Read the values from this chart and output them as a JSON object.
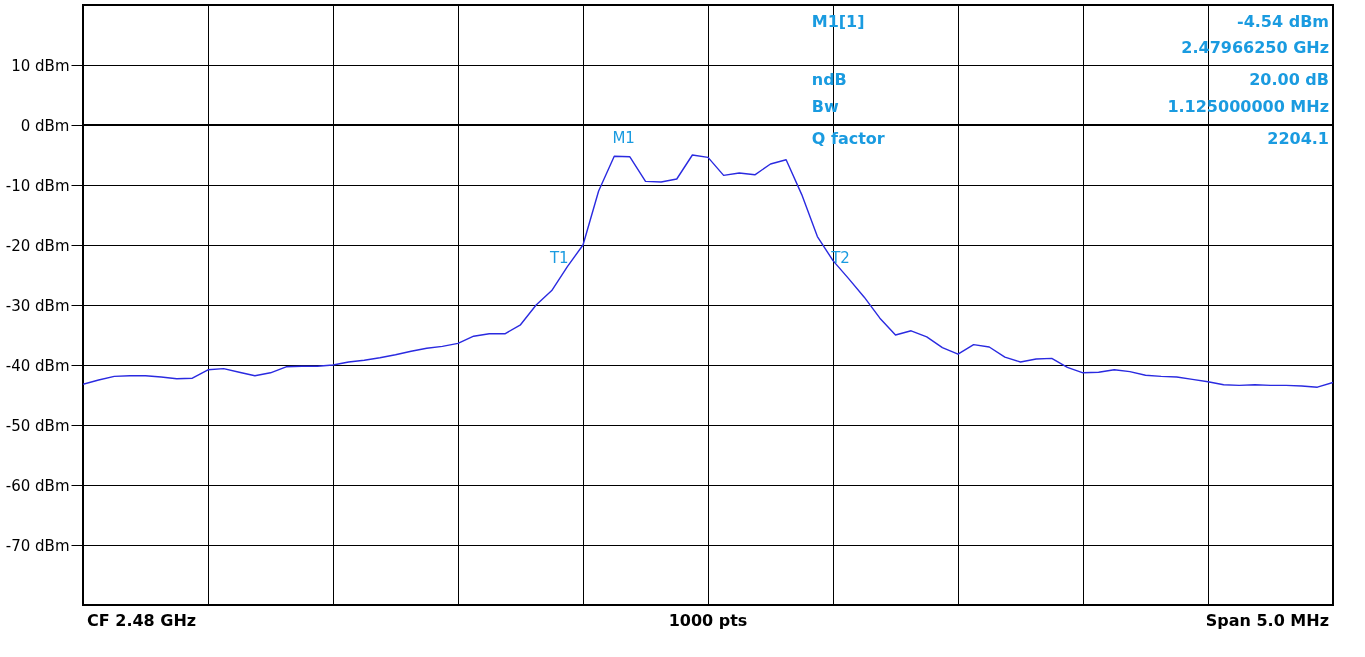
{
  "chart_data": {
    "type": "line",
    "categories": [
      null,
      null,
      null,
      null,
      null,
      null,
      null,
      null,
      null,
      null,
      null,
      null,
      null,
      null,
      null,
      null,
      null,
      null,
      null,
      null,
      null,
      null,
      null,
      null,
      null,
      null,
      null,
      null,
      null,
      null,
      null,
      null,
      null,
      null,
      null,
      null,
      null,
      null,
      null,
      null,
      null,
      null,
      null,
      null,
      null,
      null,
      null,
      null,
      null,
      null,
      null,
      null,
      null,
      null,
      null,
      null,
      null,
      null,
      null,
      null,
      null,
      null,
      null,
      null,
      null,
      null,
      null,
      null,
      null,
      null,
      null,
      null,
      null,
      null,
      null,
      null,
      null,
      null,
      null,
      null,
      null
    ],
    "series": [
      {
        "color": "#2a2ae0",
        "values": [
          -43.2,
          -42.5,
          -41.9,
          -41.8,
          -41.8,
          -42.0,
          -42.3,
          -42.2,
          -40.8,
          -40.6,
          -41.2,
          -41.8,
          -41.3,
          -40.3,
          -40.2,
          -40.2,
          -40.0,
          -39.5,
          -39.2,
          -38.8,
          -38.3,
          -37.7,
          -37.2,
          -36.9,
          -36.4,
          -35.2,
          -34.8,
          -34.8,
          -33.3,
          -30.0,
          -27.6,
          -23.6,
          -20.0,
          -11.0,
          -5.2,
          -5.3,
          -9.4,
          -9.5,
          -9.0,
          -5.0,
          -5.4,
          -8.4,
          -8.0,
          -8.3,
          -6.5,
          -5.8,
          -11.6,
          -18.6,
          -22.6,
          -25.6,
          -28.7,
          -32.2,
          -35.0,
          -34.3,
          -35.3,
          -37.1,
          -38.2,
          -36.6,
          -37.0,
          -38.7,
          -39.5,
          -39.0,
          -38.9,
          -40.4,
          -41.3,
          -41.2,
          -40.8,
          -41.1,
          -41.7,
          -41.9,
          -42.0,
          -42.4,
          -42.8,
          -43.3,
          -43.4,
          -43.3,
          -43.4,
          -43.4,
          -43.5,
          -43.7,
          -42.9
        ]
      }
    ],
    "ylim": [
      -80,
      20
    ],
    "yticks": [
      {
        "value": 10,
        "label": "10 dBm"
      },
      {
        "value": 0,
        "label": "0 dBm"
      },
      {
        "value": -10,
        "label": "-10 dBm"
      },
      {
        "value": -20,
        "label": "-20 dBm"
      },
      {
        "value": -30,
        "label": "-30 dBm"
      },
      {
        "value": -40,
        "label": "-40 dBm"
      },
      {
        "value": -50,
        "label": "-50 dBm"
      },
      {
        "value": -60,
        "label": "-60 dBm"
      },
      {
        "value": -70,
        "label": "-70 dBm"
      }
    ],
    "tick_labels": "y",
    "grid": true,
    "marker": "none",
    "line_style": "solid",
    "ref_lines": [
      {
        "axis": "y",
        "value": 0,
        "color": "#000000"
      }
    ],
    "annotations": [
      "M1[1]",
      "-4.54 dBm",
      "2.47966250 GHz",
      "ndB",
      "20.00 dB",
      "Bw",
      "1.125000000 MHz",
      "Q factor",
      "2204.1",
      "CF 2.48 GHz",
      "1000 pts",
      "Span 5.0 MHz",
      "M1",
      "T1",
      "T2"
    ]
  }
}
